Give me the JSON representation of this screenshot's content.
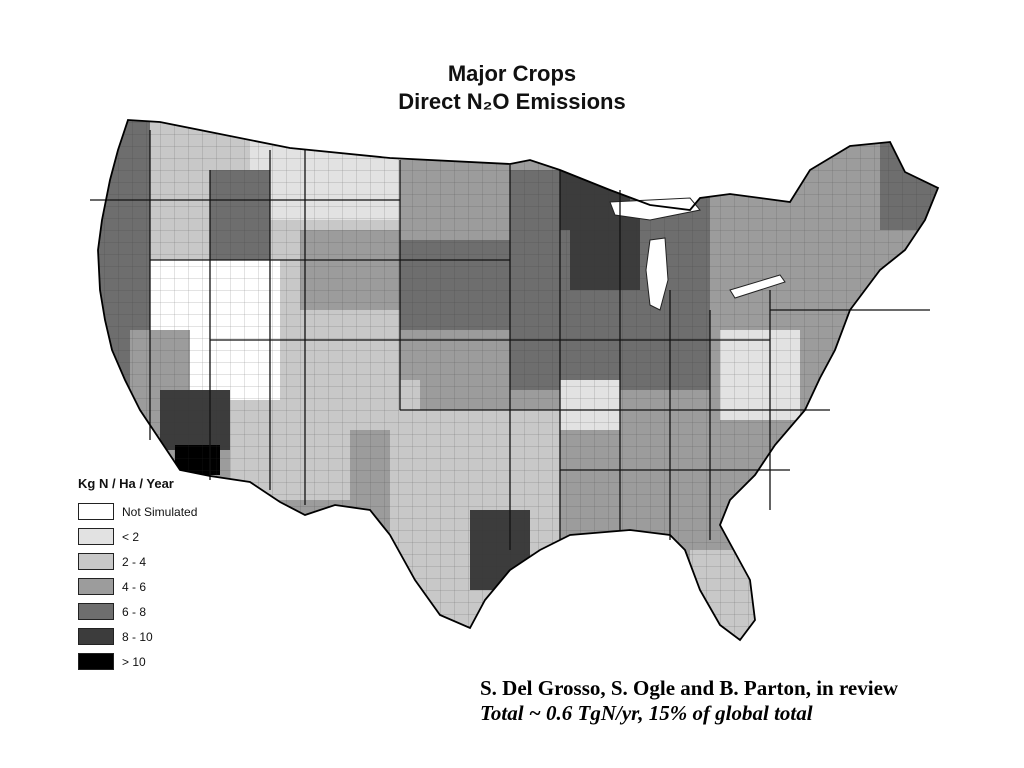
{
  "title": {
    "line1": "Major Crops",
    "line2": "Direct N₂O Emissions"
  },
  "map": {
    "region": "Contiguous United States (county level)",
    "colors": {
      "not_simulated": "#ffffff",
      "lt2": "#e2e2e2",
      "2_4": "#c8c8c8",
      "4_6": "#9c9c9c",
      "6_8": "#6e6e6e",
      "8_10": "#3c3c3c",
      "gt10": "#000000",
      "border": "#222222"
    }
  },
  "legend": {
    "title": "Kg N / Ha / Year",
    "items": [
      {
        "label": "Not Simulated",
        "color": "#ffffff"
      },
      {
        "label": "< 2",
        "color": "#e2e2e2"
      },
      {
        "label": "2 - 4",
        "color": "#c8c8c8"
      },
      {
        "label": "4 - 6",
        "color": "#9c9c9c"
      },
      {
        "label": "6 - 8",
        "color": "#6e6e6e"
      },
      {
        "label": "8 - 10",
        "color": "#3c3c3c"
      },
      {
        "label": "> 10",
        "color": "#000000"
      }
    ]
  },
  "citation": {
    "authors": "S. Del Grosso, S. Ogle and B. Parton, in review",
    "total": "Total ~ 0.6 TgN/yr, 15% of global total"
  }
}
